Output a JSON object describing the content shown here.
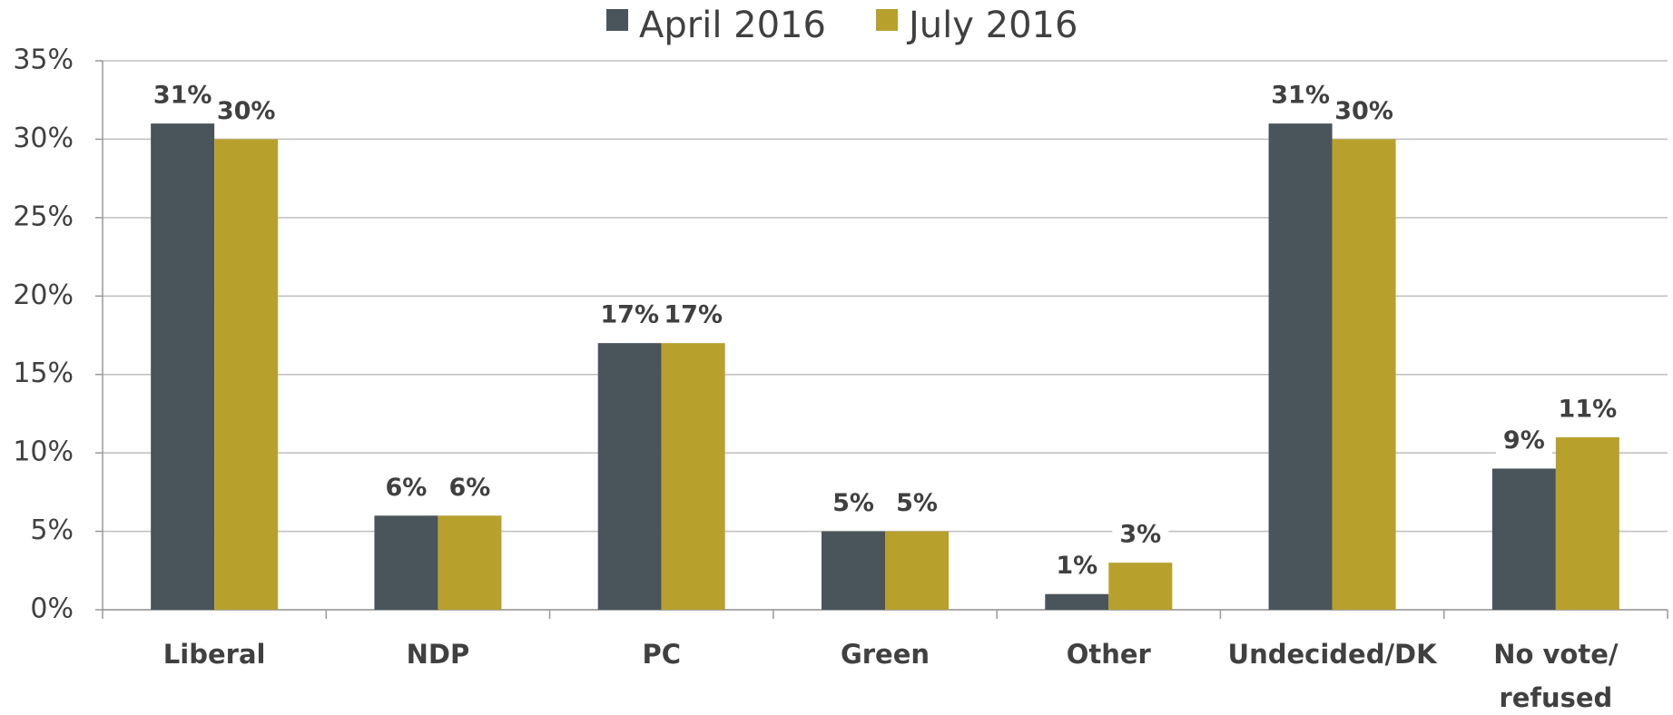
{
  "chart_data": {
    "type": "bar",
    "categories": [
      "Liberal",
      "NDP",
      "PC",
      "Green",
      "Other",
      "Undecided/DK",
      "No vote/\nrefused"
    ],
    "series": [
      {
        "name": "April 2016",
        "color": "#4a545b",
        "values": [
          31,
          6,
          17,
          5,
          1,
          31,
          9
        ],
        "value_labels": [
          "31%",
          "6%",
          "17%",
          "5%",
          "1%",
          "31%",
          "9%"
        ]
      },
      {
        "name": "July 2016",
        "color": "#b8a02d",
        "values": [
          30,
          6,
          17,
          5,
          3,
          30,
          11
        ],
        "value_labels": [
          "30%",
          "6%",
          "17%",
          "5%",
          "3%",
          "30%",
          "11%"
        ]
      }
    ],
    "ylim": [
      0,
      35
    ],
    "yticks": [
      {
        "value": 0,
        "label": "0%"
      },
      {
        "value": 5,
        "label": "5%"
      },
      {
        "value": 10,
        "label": "10%"
      },
      {
        "value": 15,
        "label": "15%"
      },
      {
        "value": 20,
        "label": "20%"
      },
      {
        "value": 25,
        "label": "25%"
      },
      {
        "value": 30,
        "label": "30%"
      },
      {
        "value": 35,
        "label": "35%"
      }
    ],
    "grid": true,
    "legend": "top"
  }
}
